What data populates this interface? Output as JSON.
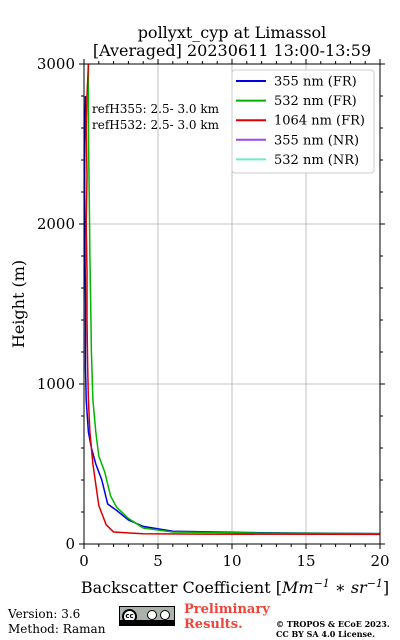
{
  "chart_data": {
    "type": "line",
    "title": [
      "pollyxt_cyp at Limassol",
      "[Averaged] 20230611 13:00-13:59"
    ],
    "xlabel_prefix": "Backscatter Coefficient [",
    "xlabel_math": "Mm",
    "xlabel_sup1": "−1",
    "xlabel_mid": " ∗ sr",
    "xlabel_sup2": "−1",
    "xlabel_suffix": "]",
    "ylabel": "Height (m)",
    "xlim": [
      0,
      20
    ],
    "ylim": [
      0,
      3000
    ],
    "xticks": [
      0,
      5,
      10,
      15,
      20
    ],
    "yticks": [
      0,
      1000,
      2000,
      3000
    ],
    "grid": true,
    "legend_position": "top-right",
    "annotations": [
      "refH355:  2.5- 3.0 km",
      "refH532:  2.5- 3.0 km"
    ],
    "series": [
      {
        "name": "355 nm (FR)",
        "color": "#0000e6",
        "x": [
          20,
          12,
          6,
          4,
          3,
          2.2,
          1.6,
          1.2,
          0.8,
          0.5,
          0.3,
          0.15,
          0.1,
          0.1,
          0.05,
          0.05,
          0.1
        ],
        "y": [
          65,
          70,
          80,
          110,
          150,
          210,
          250,
          400,
          500,
          600,
          700,
          900,
          1100,
          1500,
          2000,
          2500,
          2800
        ]
      },
      {
        "name": "532 nm (FR)",
        "color": "#00b400",
        "x": [
          20,
          12,
          6,
          4,
          3,
          2.2,
          1.8,
          1.4,
          1.0,
          0.8,
          0.6,
          0.5,
          0.45,
          0.4,
          0.35,
          0.3,
          0.3
        ],
        "y": [
          65,
          68,
          75,
          100,
          160,
          230,
          300,
          450,
          550,
          700,
          900,
          1200,
          1500,
          1800,
          2200,
          2600,
          3000
        ]
      },
      {
        "name": "1064 nm (FR)",
        "color": "#dd0000",
        "x": [
          20,
          8,
          4,
          2,
          1.5,
          1.0,
          0.6,
          0.4,
          0.3,
          0.25,
          0.2,
          0.2,
          0.15,
          0.2,
          0.15,
          0.2,
          0.3
        ],
        "y": [
          60,
          62,
          64,
          75,
          120,
          240,
          500,
          700,
          900,
          1100,
          1400,
          1700,
          2000,
          2300,
          2600,
          2800,
          3000
        ]
      },
      {
        "name": "355 nm (NR)",
        "color": "#9a48e8",
        "x": [],
        "y": []
      },
      {
        "name": "532 nm (NR)",
        "color": "#66eecc",
        "x": [],
        "y": []
      }
    ]
  },
  "footer": {
    "version": "Version: 3.6",
    "method": "Method: Raman",
    "prelim_line1": "Preliminary",
    "prelim_line2": "Results.",
    "copyright_line1": "© TROPOS & ECoE 2023.",
    "copyright_line2": "CC BY SA 4.0 License.",
    "cc_logo_text": "cc"
  }
}
